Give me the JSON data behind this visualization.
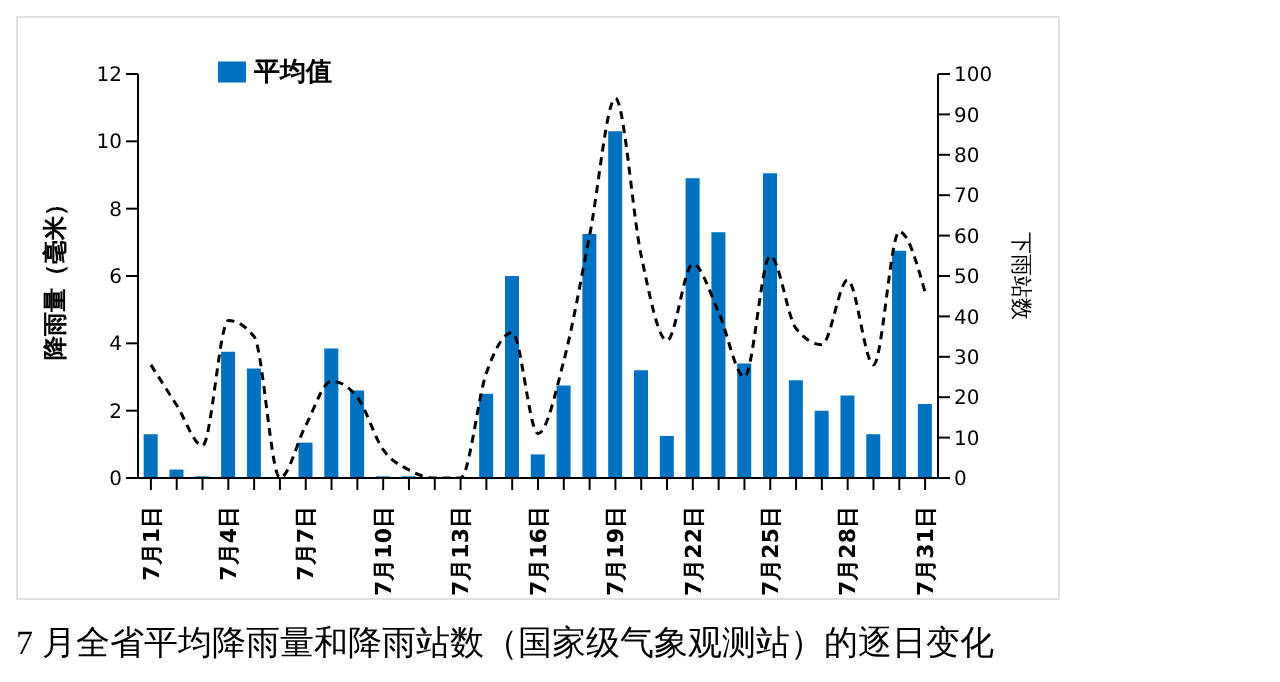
{
  "chart_data": {
    "type": "bar",
    "title": "7 月全省平均降雨量和降雨站数（国家级气象观测站）的逐日变化",
    "ylabel": "降雨量（毫米）",
    "y2label": "下雨站数",
    "categories": [
      "7月1日",
      null,
      null,
      "7月4日",
      null,
      null,
      "7月7日",
      null,
      null,
      "7月10日",
      null,
      null,
      "7月13日",
      null,
      null,
      "7月16日",
      null,
      null,
      "7月19日",
      null,
      null,
      "7月22日",
      null,
      null,
      "7月25日",
      null,
      null,
      "7月28日",
      null,
      null,
      "7月31日"
    ],
    "series": [
      {
        "name": "平均值",
        "color": "#0070c0",
        "values": [
          1.3,
          0.25,
          0.05,
          3.75,
          3.25,
          0,
          1.05,
          3.85,
          2.6,
          0.05,
          0.05,
          0,
          0,
          2.5,
          6.0,
          0.7,
          2.75,
          7.25,
          10.3,
          3.2,
          1.25,
          8.9,
          7.3,
          3.4,
          9.05,
          2.9,
          2.0,
          2.45,
          1.3,
          6.75,
          2.2
        ]
      },
      {
        "type": "line",
        "axis": "y2",
        "color": "#000000",
        "line_style": "dashed",
        "values": [
          28,
          18,
          8,
          39,
          35,
          0,
          13,
          24,
          20,
          7,
          2,
          0,
          0,
          26,
          36,
          11,
          29,
          60,
          94,
          55,
          34,
          53,
          41,
          25,
          55,
          37,
          33,
          49,
          28,
          61,
          46
        ]
      }
    ],
    "ylim": [
      0,
      12
    ],
    "yticks": [
      0,
      2,
      4,
      6,
      8,
      10,
      12
    ],
    "y2lim": [
      0,
      100
    ],
    "y2ticks": [
      0,
      10,
      20,
      30,
      40,
      50,
      60,
      70,
      80,
      90,
      100
    ],
    "marker": "none",
    "grid": false,
    "legend": "top left"
  }
}
